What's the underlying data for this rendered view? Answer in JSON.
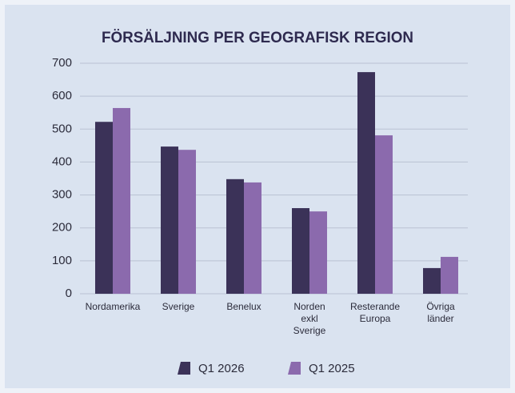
{
  "chart_data": {
    "type": "bar",
    "title": "FÖRSÄLJNING PER GEOGRAFISK REGION",
    "categories": [
      "Nordamerika",
      "Sverige",
      "Benelux",
      "Norden exkl Sverige",
      "Resterande Europa",
      "Övriga länder"
    ],
    "series": [
      {
        "name": "Q1 2026",
        "color": "#3b3258",
        "values": [
          522,
          447,
          348,
          260,
          673,
          78
        ]
      },
      {
        "name": "Q1 2025",
        "color": "#8b6aad",
        "values": [
          564,
          437,
          338,
          250,
          481,
          112
        ]
      }
    ],
    "ylim": [
      0,
      700
    ],
    "yticks": [
      0,
      100,
      200,
      300,
      400,
      500,
      600,
      700
    ],
    "grid": true,
    "legend": "bottom"
  }
}
